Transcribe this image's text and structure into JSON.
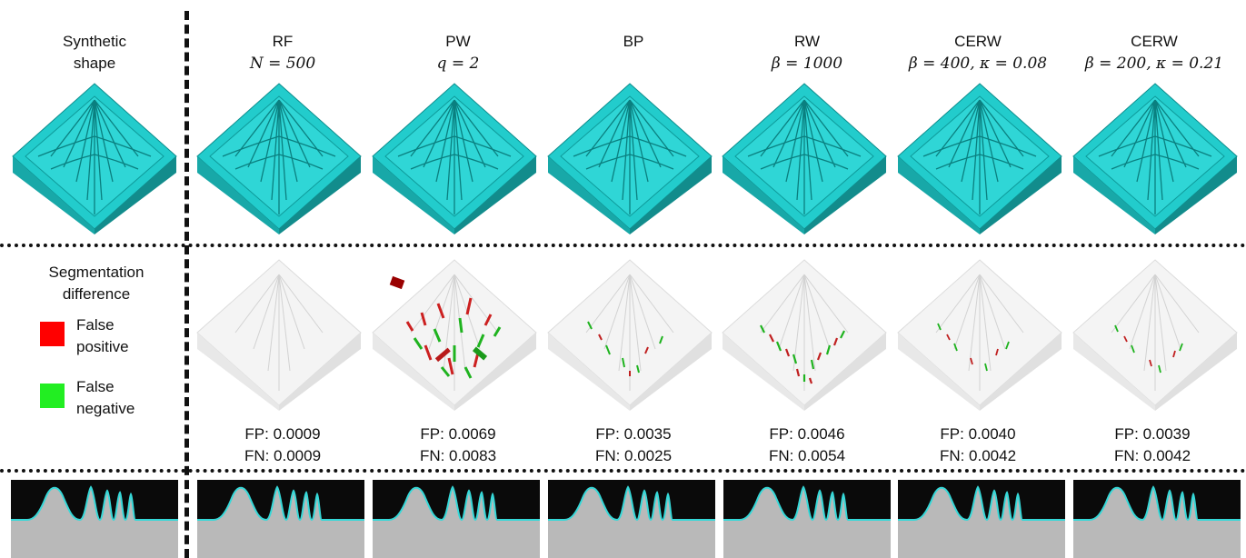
{
  "left_column": {
    "header_line1": "Synthetic",
    "header_line2": "shape",
    "seg_title_line1": "Segmentation",
    "seg_title_line2": "difference",
    "fp_label_line1": "False",
    "fp_label_line2": "positive",
    "fn_label_line1": "False",
    "fn_label_line2": "negative"
  },
  "colors": {
    "shape": "#1fc4c4",
    "false_positive": "#ff0000",
    "false_negative": "#22dd22"
  },
  "methods": [
    {
      "name": "RF",
      "param": "N = 500",
      "fp": "FP: 0.0009",
      "fn": "FN: 0.0009"
    },
    {
      "name": "PW",
      "param": "q = 2",
      "fp": "FP: 0.0069",
      "fn": "FN: 0.0083"
    },
    {
      "name": "BP",
      "param": "",
      "fp": "FP: 0.0035",
      "fn": "FN: 0.0025"
    },
    {
      "name": "RW",
      "param": "β = 1000",
      "fp": "FP: 0.0046",
      "fn": "FN: 0.0054"
    },
    {
      "name": "CERW",
      "param": "β = 400,  κ = 0.08",
      "fp": "FP: 0.0040",
      "fn": "FN: 0.0042"
    },
    {
      "name": "CERW",
      "param": "β = 200,  κ = 0.21",
      "fp": "FP: 0.0039",
      "fn": "FN: 0.0042"
    }
  ]
}
